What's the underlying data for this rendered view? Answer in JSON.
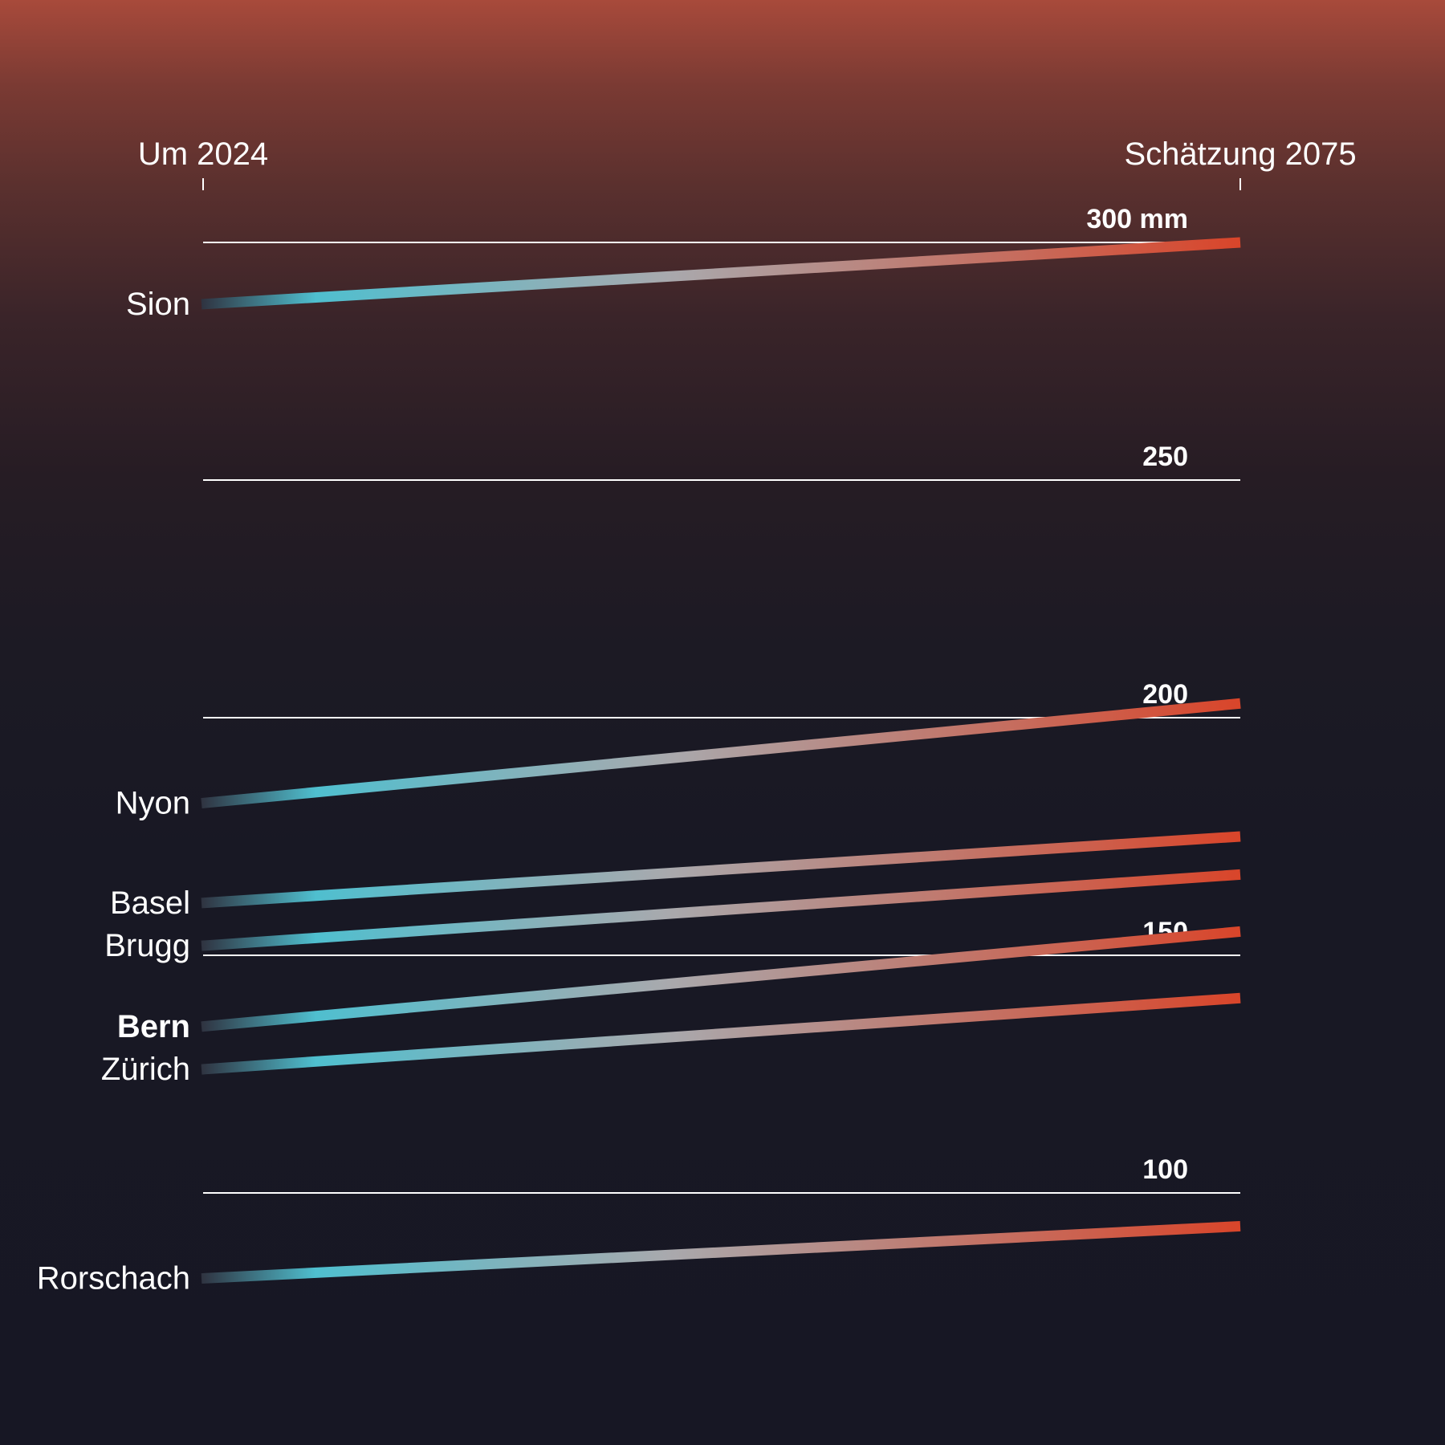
{
  "colors": {
    "background_top": "#a84a3b",
    "background_bottom": "#171724",
    "line_start_fade": "#2f3340",
    "line_cool": "#4fbfcf",
    "line_mid": "#a9a9ad",
    "line_hot": "#d9452a",
    "gridline": "#ffffff",
    "text": "#ffffff"
  },
  "chart_data": {
    "type": "line",
    "subtype": "slope",
    "columns": [
      "Um 2024",
      "Schätzung 2075"
    ],
    "ylim": [
      60,
      315
    ],
    "gridlines": [
      {
        "value": 300,
        "label": "300 mm"
      },
      {
        "value": 250,
        "label": "250"
      },
      {
        "value": 200,
        "label": "200"
      },
      {
        "value": 150,
        "label": "150"
      },
      {
        "value": 100,
        "label": "100"
      }
    ],
    "series": [
      {
        "name": "Sion",
        "start": 287,
        "end": 300,
        "bold": false
      },
      {
        "name": "Nyon",
        "start": 182,
        "end": 203,
        "bold": false
      },
      {
        "name": "Basel",
        "start": 161,
        "end": 175,
        "bold": false
      },
      {
        "name": "Brugg",
        "start": 152,
        "end": 167,
        "bold": false
      },
      {
        "name": "Bern",
        "start": 135,
        "end": 155,
        "bold": true
      },
      {
        "name": "Zürich",
        "start": 126,
        "end": 141,
        "bold": false
      },
      {
        "name": "Rorschach",
        "start": 82,
        "end": 93,
        "bold": false
      }
    ]
  }
}
